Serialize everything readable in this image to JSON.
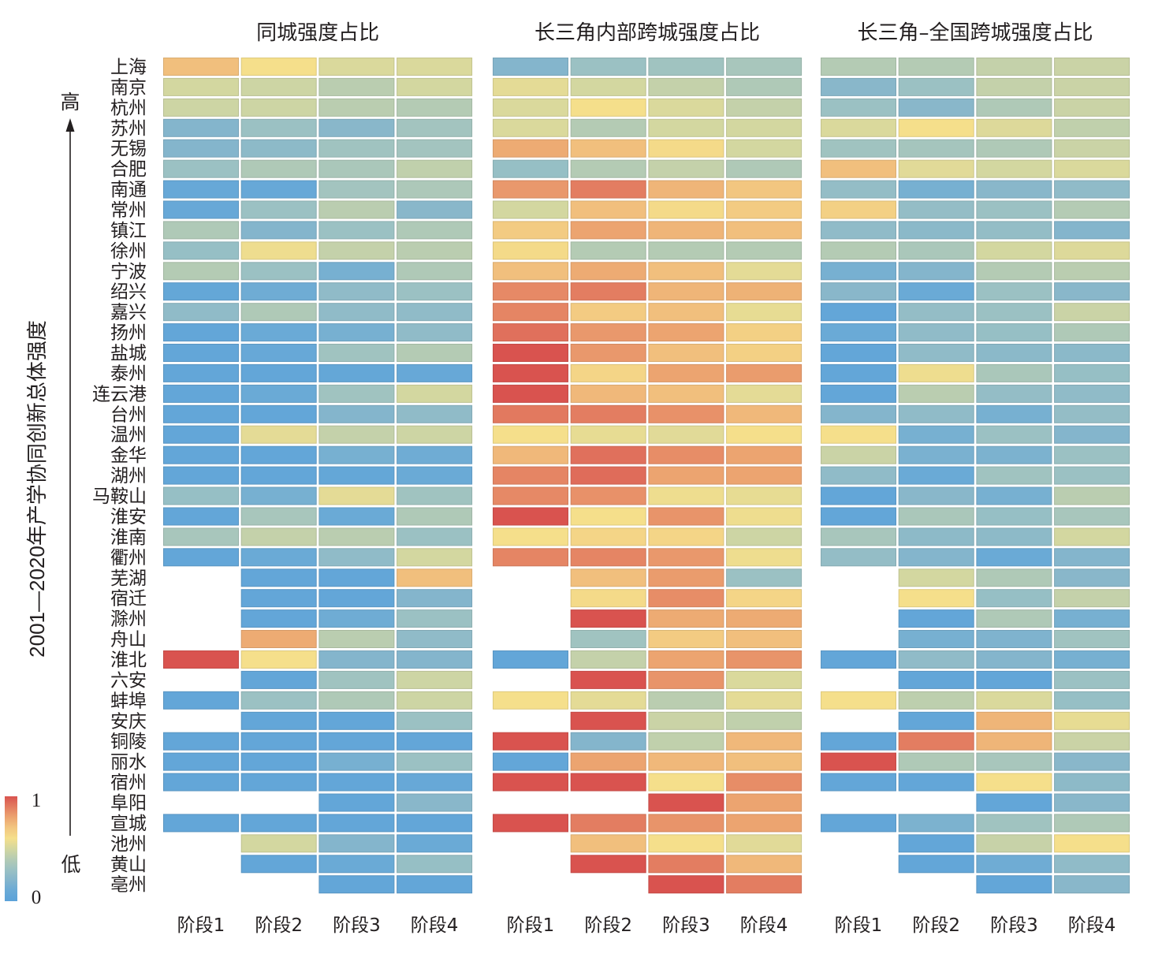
{
  "chart_data": {
    "type": "heatmap",
    "title": "",
    "ylabel": "2001—2020年产学协同创新总体强度",
    "y_axis_high_label": "高",
    "y_axis_low_label": "低",
    "y_axis_direction": "up = higher overall intensity",
    "missing_value_display": "blank",
    "zlim": [
      0,
      1
    ],
    "rows": [
      "上海",
      "南京",
      "杭州",
      "苏州",
      "无锡",
      "合肥",
      "南通",
      "常州",
      "镇江",
      "徐州",
      "宁波",
      "绍兴",
      "嘉兴",
      "扬州",
      "盐城",
      "泰州",
      "连云港",
      "台州",
      "温州",
      "金华",
      "湖州",
      "马鞍山",
      "淮安",
      "淮南",
      "衢州",
      "芜湖",
      "宿迁",
      "滁州",
      "舟山",
      "淮北",
      "六安",
      "蚌埠",
      "安庆",
      "铜陵",
      "丽水",
      "宿州",
      "阜阳",
      "宣城",
      "池州",
      "黄山",
      "亳州"
    ],
    "panels": [
      {
        "title": "同城强度占比",
        "columns": [
          "阶段1",
          "阶段2",
          "阶段3",
          "阶段4"
        ],
        "values": [
          [
            0.72,
            0.6,
            0.52,
            0.52
          ],
          [
            0.5,
            0.48,
            0.42,
            0.5
          ],
          [
            0.48,
            0.48,
            0.42,
            0.4
          ],
          [
            0.2,
            0.3,
            0.22,
            0.33
          ],
          [
            0.2,
            0.24,
            0.32,
            0.33
          ],
          [
            0.3,
            0.38,
            0.36,
            0.44
          ],
          [
            0.08,
            0.08,
            0.33,
            0.37
          ],
          [
            0.08,
            0.3,
            0.42,
            0.22
          ],
          [
            0.38,
            0.2,
            0.3,
            0.38
          ],
          [
            0.28,
            0.58,
            0.45,
            0.42
          ],
          [
            0.4,
            0.3,
            0.15,
            0.38
          ],
          [
            0.06,
            0.12,
            0.25,
            0.3
          ],
          [
            0.25,
            0.38,
            0.25,
            0.25
          ],
          [
            0.05,
            0.1,
            0.15,
            0.25
          ],
          [
            0.05,
            0.08,
            0.32,
            0.4
          ],
          [
            0.05,
            0.05,
            0.06,
            0.08
          ],
          [
            0.05,
            0.1,
            0.32,
            0.5
          ],
          [
            0.05,
            0.05,
            0.2,
            0.25
          ],
          [
            0.05,
            0.55,
            0.45,
            0.48
          ],
          [
            0.05,
            0.05,
            0.15,
            0.12
          ],
          [
            0.05,
            0.05,
            0.06,
            0.1
          ],
          [
            0.28,
            0.15,
            0.55,
            0.32
          ],
          [
            0.05,
            0.35,
            0.1,
            0.38
          ],
          [
            0.35,
            0.45,
            0.42,
            0.3
          ],
          [
            0.05,
            0.1,
            0.25,
            0.5
          ],
          [
            null,
            0.05,
            0.05,
            0.72
          ],
          [
            null,
            0.05,
            0.05,
            0.2
          ],
          [
            null,
            0.05,
            0.12,
            0.3
          ],
          [
            null,
            0.78,
            0.42,
            0.25
          ],
          [
            1.0,
            0.6,
            0.2,
            0.2
          ],
          [
            null,
            0.05,
            0.32,
            0.48
          ],
          [
            0.05,
            0.3,
            0.38,
            0.48
          ],
          [
            null,
            0.05,
            0.05,
            0.3
          ],
          [
            0.05,
            0.05,
            0.05,
            0.05
          ],
          [
            0.05,
            0.05,
            0.15,
            0.3
          ],
          [
            0.05,
            0.05,
            0.05,
            0.08
          ],
          [
            null,
            null,
            0.05,
            0.22
          ],
          [
            0.05,
            0.05,
            0.05,
            0.05
          ],
          [
            null,
            0.5,
            0.2,
            0.1
          ],
          [
            null,
            0.05,
            0.1,
            0.28
          ],
          [
            null,
            null,
            0.05,
            0.05
          ]
        ]
      },
      {
        "title": "长三角内部跨城强度占比",
        "columns": [
          "阶段1",
          "阶段2",
          "阶段3",
          "阶段4"
        ],
        "values": [
          [
            0.2,
            0.3,
            0.32,
            0.35
          ],
          [
            0.55,
            0.5,
            0.45,
            0.38
          ],
          [
            0.52,
            0.6,
            0.52,
            0.45
          ],
          [
            0.52,
            0.4,
            0.5,
            0.5
          ],
          [
            0.78,
            0.72,
            0.62,
            0.5
          ],
          [
            0.28,
            0.4,
            0.45,
            0.38
          ],
          [
            0.83,
            0.9,
            0.75,
            0.7
          ],
          [
            0.5,
            0.72,
            0.62,
            0.68
          ],
          [
            0.68,
            0.8,
            0.75,
            0.72
          ],
          [
            0.62,
            0.4,
            0.4,
            0.4
          ],
          [
            0.72,
            0.78,
            0.72,
            0.55
          ],
          [
            0.87,
            0.9,
            0.75,
            0.76
          ],
          [
            0.88,
            0.68,
            0.72,
            0.56
          ],
          [
            0.93,
            0.83,
            0.8,
            0.66
          ],
          [
            1.0,
            0.83,
            0.72,
            0.66
          ],
          [
            1.0,
            0.64,
            0.8,
            0.82
          ],
          [
            1.0,
            0.74,
            0.72,
            0.55
          ],
          [
            0.91,
            0.9,
            0.85,
            0.74
          ],
          [
            0.6,
            0.56,
            0.54,
            0.6
          ],
          [
            0.74,
            0.93,
            0.86,
            0.8
          ],
          [
            0.88,
            0.94,
            0.8,
            0.8
          ],
          [
            0.87,
            0.85,
            0.58,
            0.56
          ],
          [
            1.0,
            0.6,
            0.84,
            0.58
          ],
          [
            0.6,
            0.64,
            0.64,
            0.48
          ],
          [
            0.88,
            0.88,
            0.83,
            0.58
          ],
          [
            null,
            0.72,
            0.82,
            0.3
          ],
          [
            null,
            0.62,
            0.86,
            0.64
          ],
          [
            null,
            1.0,
            0.78,
            0.78
          ],
          [
            null,
            0.32,
            0.68,
            0.72
          ],
          [
            0.05,
            0.45,
            0.8,
            0.84
          ],
          [
            null,
            1.0,
            0.84,
            0.52
          ],
          [
            0.6,
            0.55,
            0.42,
            0.55
          ],
          [
            null,
            1.0,
            0.47,
            0.44
          ],
          [
            1.0,
            0.2,
            0.44,
            0.74
          ],
          [
            0.05,
            0.8,
            0.74,
            0.72
          ],
          [
            1.0,
            1.0,
            0.6,
            0.86
          ],
          [
            null,
            null,
            1.0,
            0.8
          ],
          [
            1.0,
            0.9,
            0.84,
            0.8
          ],
          [
            null,
            0.72,
            0.6,
            0.54
          ],
          [
            null,
            1.0,
            0.9,
            0.74
          ],
          [
            null,
            null,
            1.0,
            0.9
          ]
        ]
      },
      {
        "title": "长三角–全国跨城强度占比",
        "columns": [
          "阶段1",
          "阶段2",
          "阶段3",
          "阶段4"
        ],
        "values": [
          [
            0.4,
            0.4,
            0.45,
            0.47
          ],
          [
            0.22,
            0.3,
            0.45,
            0.47
          ],
          [
            0.3,
            0.22,
            0.38,
            0.47
          ],
          [
            0.52,
            0.6,
            0.53,
            0.44
          ],
          [
            0.32,
            0.34,
            0.38,
            0.47
          ],
          [
            0.72,
            0.54,
            0.5,
            0.52
          ],
          [
            0.27,
            0.15,
            0.22,
            0.25
          ],
          [
            0.66,
            0.27,
            0.3,
            0.4
          ],
          [
            0.25,
            0.23,
            0.27,
            0.2
          ],
          [
            0.4,
            0.36,
            0.5,
            0.53
          ],
          [
            0.15,
            0.2,
            0.4,
            0.42
          ],
          [
            0.22,
            0.1,
            0.3,
            0.22
          ],
          [
            0.05,
            0.27,
            0.3,
            0.47
          ],
          [
            0.1,
            0.25,
            0.28,
            0.38
          ],
          [
            0.05,
            0.25,
            0.23,
            0.23
          ],
          [
            0.05,
            0.58,
            0.36,
            0.28
          ],
          [
            0.05,
            0.42,
            0.27,
            0.25
          ],
          [
            0.2,
            0.25,
            0.15,
            0.27
          ],
          [
            0.6,
            0.15,
            0.3,
            0.2
          ],
          [
            0.47,
            0.16,
            0.17,
            0.3
          ],
          [
            0.25,
            0.1,
            0.32,
            0.3
          ],
          [
            0.05,
            0.22,
            0.15,
            0.42
          ],
          [
            0.05,
            0.36,
            0.28,
            0.35
          ],
          [
            0.35,
            0.24,
            0.24,
            0.5
          ],
          [
            0.27,
            0.2,
            0.1,
            0.2
          ],
          [
            null,
            0.5,
            0.38,
            0.22
          ],
          [
            null,
            0.6,
            0.28,
            0.45
          ],
          [
            null,
            0.05,
            0.38,
            0.15
          ],
          [
            null,
            0.15,
            0.18,
            0.32
          ],
          [
            0.05,
            0.25,
            0.2,
            0.15
          ],
          [
            null,
            0.05,
            0.05,
            0.3
          ],
          [
            0.6,
            0.43,
            0.52,
            0.28
          ],
          [
            null,
            0.05,
            0.75,
            0.56
          ],
          [
            0.05,
            0.9,
            0.75,
            0.47
          ],
          [
            1.0,
            0.38,
            0.35,
            0.22
          ],
          [
            0.05,
            0.05,
            0.6,
            0.24
          ],
          [
            null,
            null,
            0.05,
            0.22
          ],
          [
            0.05,
            0.17,
            0.32,
            0.38
          ],
          [
            null,
            0.05,
            0.46,
            0.6
          ],
          [
            null,
            0.05,
            0.12,
            0.25
          ],
          [
            null,
            null,
            0.05,
            0.22
          ]
        ]
      }
    ],
    "colorbar": {
      "min": 0,
      "max": 1,
      "min_label": "0",
      "max_label": "1",
      "placement": "bottom-left",
      "stops": [
        {
          "value": 0.0,
          "color": "#5ba2d9"
        },
        {
          "value": 0.1,
          "color": "#6aaad6"
        },
        {
          "value": 0.2,
          "color": "#84b5cc"
        },
        {
          "value": 0.3,
          "color": "#9bc1c3"
        },
        {
          "value": 0.4,
          "color": "#b4cbb4"
        },
        {
          "value": 0.5,
          "color": "#d3d7a0"
        },
        {
          "value": 0.6,
          "color": "#f5df8b"
        },
        {
          "value": 0.7,
          "color": "#f2c680"
        },
        {
          "value": 0.8,
          "color": "#eca470"
        },
        {
          "value": 0.9,
          "color": "#e37d61"
        },
        {
          "value": 1.0,
          "color": "#d9534f"
        }
      ]
    }
  }
}
